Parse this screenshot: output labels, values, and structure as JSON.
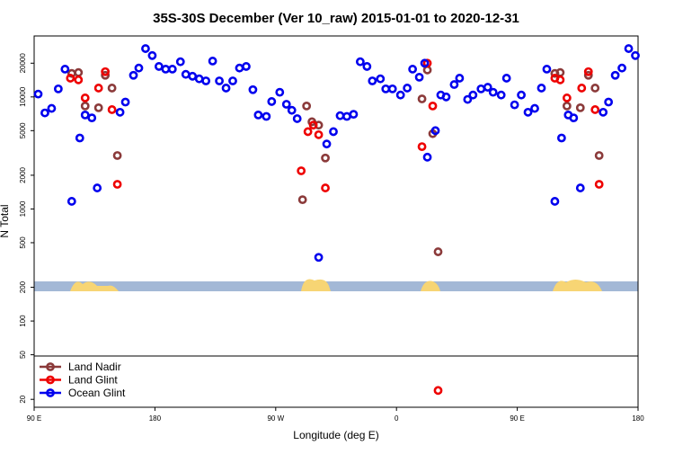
{
  "chart_data": {
    "type": "scatter",
    "title": "35S-30S December (Ver 10_raw)   2015-01-01 to 2020-12-31",
    "x_label": "Longitude (deg E)",
    "y_label": "N Total",
    "log_y": true,
    "legend_position": "bottom-left",
    "xlim": [
      90,
      540
    ],
    "xticks": [
      {
        "value": 90,
        "label": "90 E"
      },
      {
        "value": 180,
        "label": "180"
      },
      {
        "value": 270,
        "label": "90 W"
      },
      {
        "value": 360,
        "label": "0"
      },
      {
        "value": 450,
        "label": "90 E"
      },
      {
        "value": 540,
        "label": "180"
      }
    ],
    "ylim": [
      17,
      35000
    ],
    "yticks": [
      20,
      50,
      100,
      200,
      500,
      1000,
      2000,
      5000,
      10000,
      20000
    ],
    "series": [
      {
        "name": "Land Nadir",
        "color": "#8b3a3a",
        "x": [
          118,
          123,
          128,
          138,
          143,
          148,
          152,
          290,
          293,
          297,
          302,
          307,
          379,
          383,
          387,
          391,
          478,
          482,
          487,
          497,
          503,
          508,
          511
        ],
        "values": [
          16200,
          16500,
          8300,
          8000,
          15600,
          12000,
          3000,
          1210,
          8300,
          6000,
          5600,
          2850,
          9600,
          17400,
          4700,
          415,
          16200,
          16500,
          8300,
          8000,
          15600,
          12000,
          3000
        ]
      },
      {
        "name": "Land Glint",
        "color": "#ee0000",
        "x": [
          117,
          123,
          128,
          138,
          143,
          148,
          152,
          289,
          294,
          298,
          302,
          307,
          379,
          383,
          387,
          391,
          478,
          482,
          487,
          498,
          503,
          508,
          511
        ],
        "values": [
          14700,
          14200,
          9800,
          12000,
          16800,
          7700,
          1660,
          2190,
          4900,
          5600,
          4600,
          1540,
          3600,
          20000,
          8300,
          24,
          14700,
          14200,
          9800,
          12000,
          16800,
          7700,
          1660
        ]
      },
      {
        "name": "Ocean Glint",
        "color": "#0000ee",
        "x": [
          93,
          98,
          103,
          108,
          113,
          118,
          124,
          128,
          133,
          137,
          154,
          158,
          164,
          168,
          173,
          178,
          183,
          188,
          193,
          199,
          203,
          208,
          213,
          218,
          223,
          228,
          233,
          238,
          243,
          248,
          253,
          257,
          263,
          267,
          273,
          278,
          282,
          286,
          302,
          308,
          313,
          318,
          323,
          328,
          333,
          338,
          342,
          348,
          352,
          357,
          363,
          368,
          372,
          377,
          381,
          383,
          389,
          393,
          397,
          403,
          407,
          413,
          417,
          423,
          428,
          432,
          438,
          442,
          448,
          453,
          458,
          463,
          468,
          472,
          478,
          483,
          488,
          492,
          497,
          514,
          518,
          523,
          528,
          533,
          538
        ],
        "values": [
          10600,
          7200,
          7900,
          11800,
          17700,
          1170,
          4300,
          6900,
          6500,
          1540,
          7300,
          9000,
          15600,
          18100,
          27000,
          23400,
          18700,
          17700,
          17700,
          20600,
          15900,
          15300,
          14500,
          13900,
          20900,
          13900,
          12000,
          13900,
          18100,
          18700,
          11600,
          6900,
          6700,
          9100,
          11000,
          8600,
          7600,
          6400,
          370,
          3800,
          4900,
          6800,
          6700,
          7000,
          20600,
          18700,
          13900,
          14500,
          11800,
          11800,
          10400,
          12000,
          17700,
          15000,
          20000,
          2900,
          5000,
          10400,
          10000,
          12900,
          14700,
          9500,
          10400,
          11800,
          12200,
          11000,
          10400,
          14700,
          8500,
          10400,
          7300,
          7900,
          12000,
          17700,
          1170,
          4300,
          6900,
          6500,
          1540,
          7300,
          9000,
          15600,
          18100,
          27000,
          23400
        ]
      }
    ]
  }
}
